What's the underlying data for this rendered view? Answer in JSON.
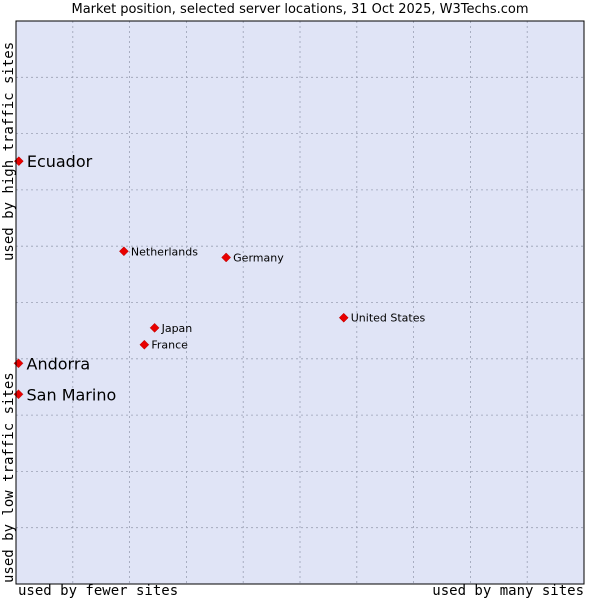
{
  "chart_data": {
    "type": "scatter",
    "title": "Market position, selected server locations, 31 Oct 2025, W3Techs.com",
    "xlabel_low": "used by fewer sites",
    "xlabel_high": "used by many sites",
    "ylabel_low": "used by low traffic sites",
    "ylabel_high": "used by high traffic sites",
    "xlim": [
      0,
      100
    ],
    "ylim": [
      0,
      100
    ],
    "grid": true,
    "marker_color": "#e80000",
    "plot_background": "#e0e4f6",
    "points": [
      {
        "label": "Ecuador",
        "x": 0.5,
        "y": 75.1,
        "emphasis": true
      },
      {
        "label": "Netherlands",
        "x": 19.0,
        "y": 59.1,
        "emphasis": false
      },
      {
        "label": "Germany",
        "x": 37.0,
        "y": 58.0,
        "emphasis": false
      },
      {
        "label": "United States",
        "x": 57.7,
        "y": 47.3,
        "emphasis": false
      },
      {
        "label": "Japan",
        "x": 24.4,
        "y": 45.5,
        "emphasis": false
      },
      {
        "label": "France",
        "x": 22.6,
        "y": 42.5,
        "emphasis": false
      },
      {
        "label": "Andorra",
        "x": 0.0,
        "y": 39.2,
        "emphasis": true
      },
      {
        "label": "San Marino",
        "x": 0.0,
        "y": 33.7,
        "emphasis": true
      }
    ]
  }
}
